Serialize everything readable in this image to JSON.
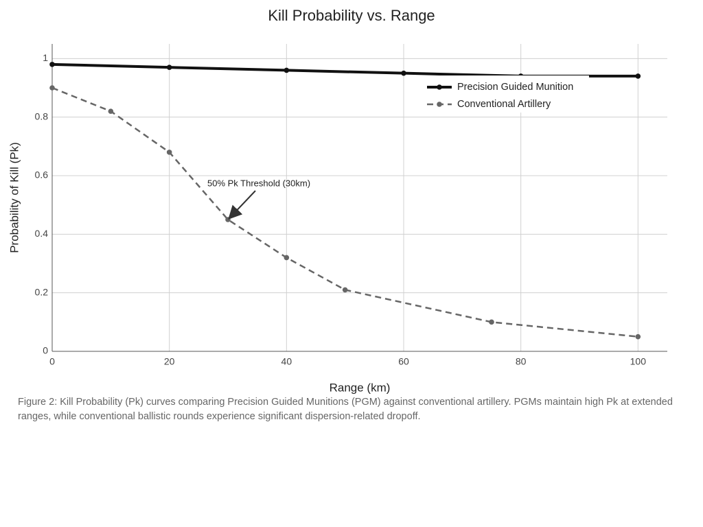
{
  "chart_data": {
    "type": "line",
    "title": "Kill Probability vs. Range",
    "xlabel": "Range (km)",
    "ylabel": "Probability of Kill (Pk)",
    "series": [
      {
        "name": "Precision Guided Munition",
        "color": "#111111",
        "dashed": false,
        "x": [
          0,
          20,
          40,
          60,
          80,
          100
        ],
        "values": [
          0.98,
          0.97,
          0.96,
          0.95,
          0.94,
          0.94
        ]
      },
      {
        "name": "Conventional Artillery",
        "color": "#666666",
        "dashed": true,
        "x": [
          0,
          10,
          20,
          30,
          40,
          50,
          75,
          100
        ],
        "values": [
          0.9,
          0.82,
          0.68,
          0.45,
          0.32,
          0.21,
          0.1,
          0.05
        ]
      }
    ],
    "xlim": [
      0,
      105
    ],
    "ylim": [
      0,
      1.05
    ],
    "xticks": [
      0,
      20,
      40,
      60,
      80,
      100
    ],
    "yticks": [
      0,
      0.2,
      0.4,
      0.6,
      0.8,
      1
    ],
    "grid": true,
    "legend": "upper right",
    "annotation": {
      "text": "50% Pk Threshold (30km)",
      "xy": [
        30,
        0.45
      ]
    },
    "caption": "Figure 2: Kill Probability (Pk) curves comparing Precision Guided Munitions (PGM) against conventional artillery. PGMs maintain high Pk at extended ranges, while conventional ballistic rounds experience significant dispersion-related dropoff."
  }
}
